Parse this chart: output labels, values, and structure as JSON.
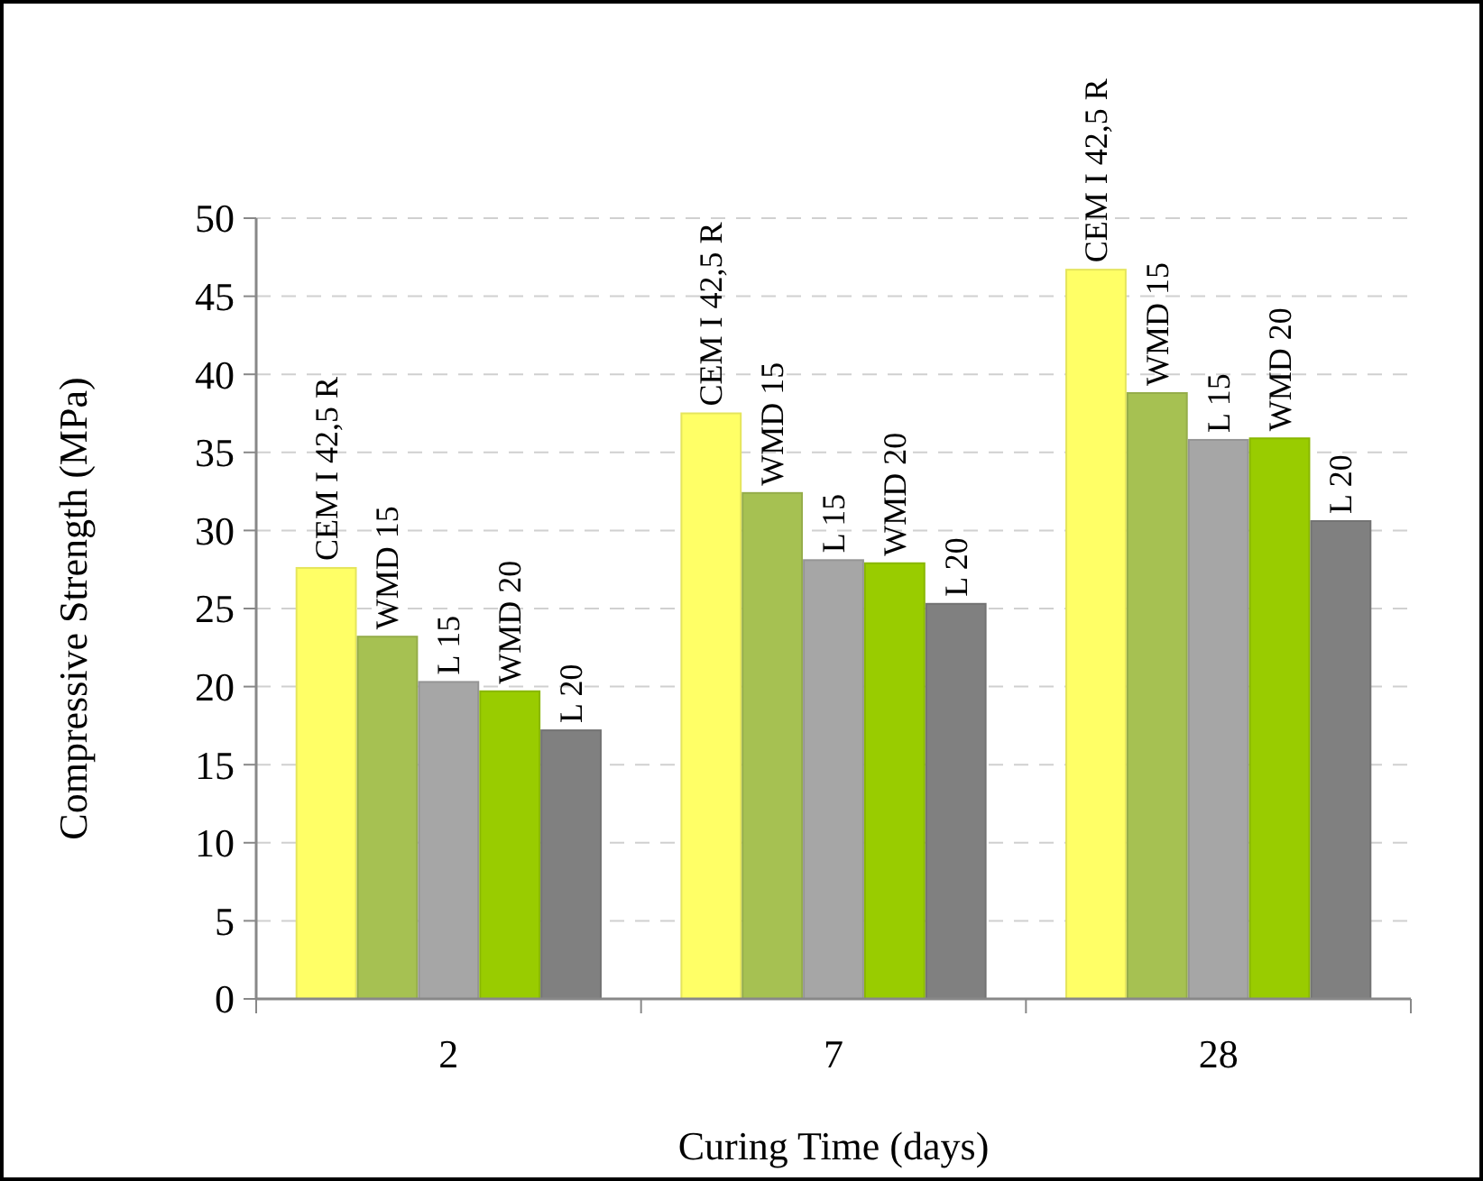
{
  "chart_data": {
    "type": "bar",
    "xlabel": "Curing Time (days)",
    "ylabel": "Compressive Strength (MPa)",
    "categories": [
      "2",
      "7",
      "28"
    ],
    "series": [
      {
        "name": "CEM I 42,5 R",
        "color": "#ffff66",
        "values": [
          27.6,
          37.5,
          46.7
        ]
      },
      {
        "name": "WMD 15",
        "color": "#a6c152",
        "values": [
          23.2,
          32.4,
          38.8
        ]
      },
      {
        "name": "L 15",
        "color": "#a6a6a6",
        "values": [
          20.3,
          28.1,
          35.8
        ]
      },
      {
        "name": "WMD 20",
        "color": "#99cc00",
        "values": [
          19.7,
          27.9,
          35.9
        ]
      },
      {
        "name": "L 20",
        "color": "#808080",
        "values": [
          17.2,
          25.3,
          30.6
        ]
      }
    ],
    "ylim": [
      0,
      50
    ],
    "yticks": [
      0,
      5,
      10,
      15,
      20,
      25,
      30,
      35,
      40,
      45,
      50
    ],
    "grid": "y"
  }
}
